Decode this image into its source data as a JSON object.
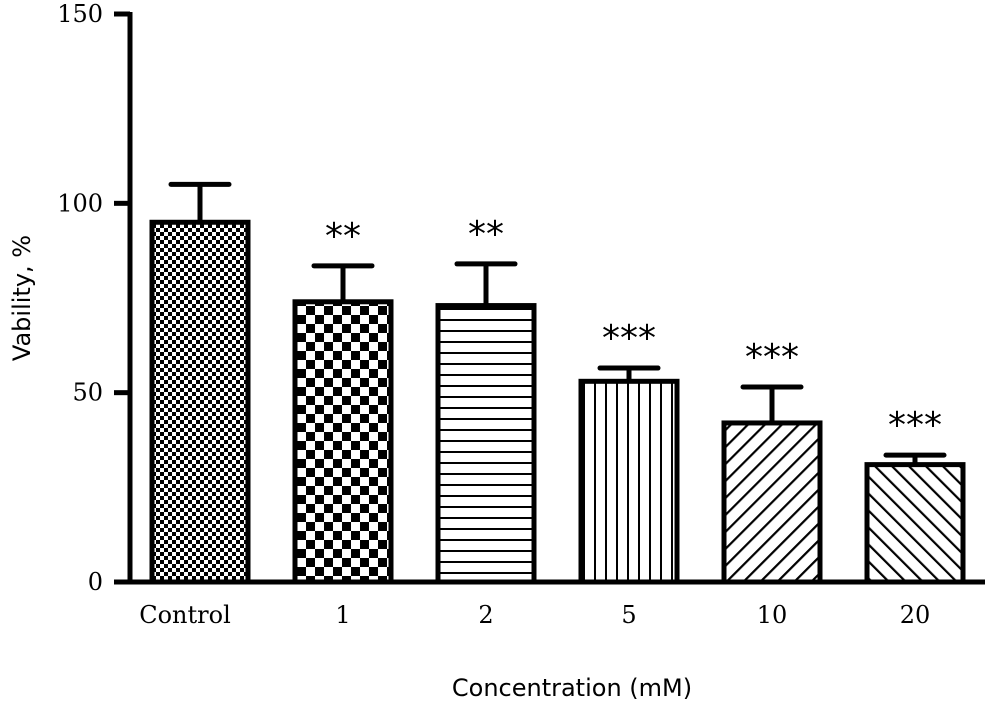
{
  "chart_data": {
    "type": "bar",
    "xlabel": "Concentration (mM)",
    "ylabel": "Vability, %",
    "ylim": [
      0,
      150
    ],
    "yticks": [
      0,
      50,
      100,
      150
    ],
    "categories": [
      "Control",
      "1",
      "2",
      "5",
      "10",
      "20"
    ],
    "values": [
      95,
      74,
      73,
      53,
      42,
      31
    ],
    "errors": [
      10,
      9.5,
      11,
      3.5,
      9.5,
      2.5
    ],
    "significance": [
      "",
      "**",
      "**",
      "***",
      "***",
      "***"
    ],
    "patterns": [
      "fine-checker",
      "checker",
      "horizontal-lines",
      "vertical-lines",
      "diagonal-right",
      "diagonal-left"
    ],
    "colors": {
      "bar_stroke": "#000000",
      "bar_fill_ink": "#000000",
      "background": "#ffffff"
    },
    "grid": false,
    "legend": "none"
  }
}
